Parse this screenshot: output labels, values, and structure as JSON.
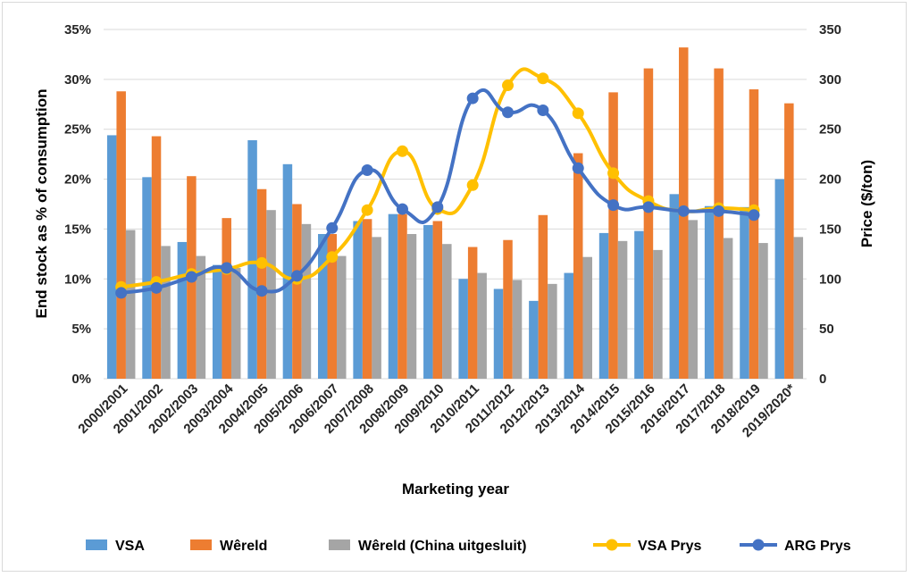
{
  "chart_data": {
    "type": "bar",
    "xlabel": "Marketing year",
    "ylabel": "End stock as % of consumption",
    "y2label": "Price ($/ton)",
    "ylim": [
      0,
      35
    ],
    "y2lim": [
      0,
      350
    ],
    "yticks": [
      "0%",
      "5%",
      "10%",
      "15%",
      "20%",
      "25%",
      "30%",
      "35%"
    ],
    "y2ticks": [
      "0",
      "50",
      "100",
      "150",
      "200",
      "250",
      "300",
      "350"
    ],
    "categories": [
      "2000/2001",
      "2001/2002",
      "2002/2003",
      "2003/2004",
      "2004/2005",
      "2005/2006",
      "2006/2007",
      "2007/2008",
      "2008/2009",
      "2009/2010",
      "2010/2011",
      "2011/2012",
      "2012/2013",
      "2013/2014",
      "2014/2015",
      "2015/2016",
      "2016/2017",
      "2017/2018",
      "2018/2019",
      "2019/2020*"
    ],
    "grid": true,
    "legend_position": "bottom",
    "series": [
      {
        "name": "VSA",
        "type": "bar",
        "axis": "left",
        "color": "#5b9bd5",
        "values": [
          24.4,
          20.2,
          13.7,
          11.4,
          23.9,
          21.5,
          14.5,
          15.8,
          16.5,
          15.4,
          10.0,
          9.0,
          7.8,
          10.6,
          14.6,
          14.8,
          18.5,
          17.3,
          17.2,
          20.0
        ]
      },
      {
        "name": "Wêreld",
        "type": "bar",
        "axis": "left",
        "color": "#ed7d31",
        "values": [
          28.8,
          24.3,
          20.3,
          16.1,
          19.0,
          17.5,
          14.5,
          16.0,
          16.5,
          15.8,
          13.2,
          13.9,
          16.4,
          22.6,
          28.7,
          31.1,
          33.2,
          31.1,
          29.0,
          27.6
        ]
      },
      {
        "name": "Wêreld (China uitgesluit)",
        "type": "bar",
        "axis": "left",
        "color": "#a5a5a5",
        "values": [
          14.9,
          13.3,
          12.3,
          11.1,
          16.9,
          15.5,
          12.3,
          14.2,
          14.5,
          13.5,
          10.6,
          9.9,
          9.5,
          12.2,
          13.8,
          12.9,
          15.9,
          14.1,
          13.6,
          14.2
        ]
      },
      {
        "name": "VSA Prys",
        "type": "line",
        "axis": "right",
        "color": "#ffc000",
        "values": [
          92,
          97,
          105,
          110,
          116,
          100,
          122,
          169,
          228,
          170,
          194,
          294,
          301,
          266,
          206,
          178,
          168,
          171,
          169,
          null
        ]
      },
      {
        "name": "ARG Prys",
        "type": "line",
        "axis": "right",
        "color": "#4472c4",
        "values": [
          86,
          91,
          102,
          111,
          88,
          103,
          151,
          209,
          170,
          172,
          281,
          267,
          269,
          211,
          174,
          172,
          168,
          168,
          164,
          null
        ]
      }
    ]
  }
}
